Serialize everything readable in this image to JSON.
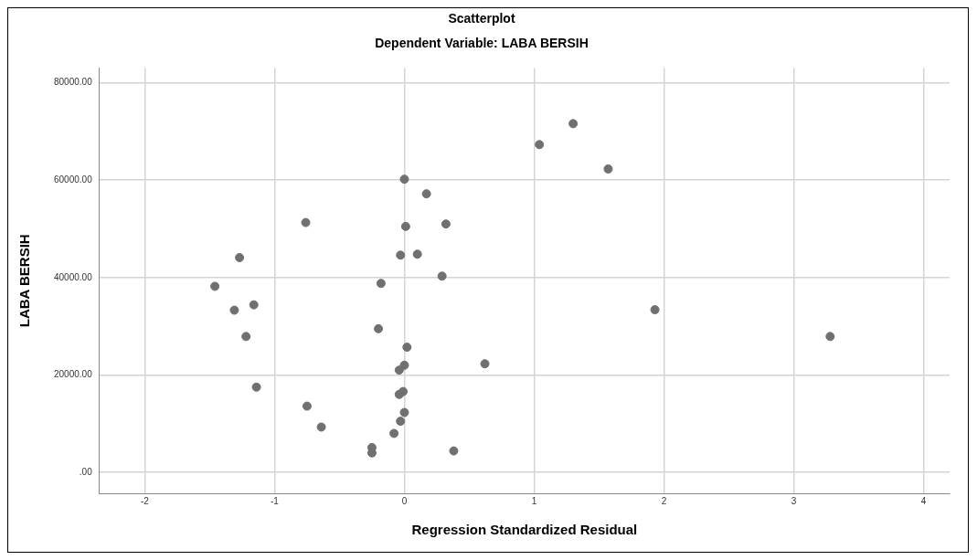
{
  "chart_data": {
    "type": "scatter",
    "title": "Scatterplot",
    "subtitle": "Dependent Variable: LABA BERSIH",
    "xlabel": "Regression Standardized Residual",
    "ylabel": "LABA BERSIH",
    "xlim": [
      -2.35,
      4.2
    ],
    "xticks": [
      -2,
      -1,
      0,
      1,
      2,
      3,
      4
    ],
    "ylim": [
      -4300,
      83000
    ],
    "yticks": [
      {
        "value": 0,
        "label": ".00"
      },
      {
        "value": 20000,
        "label": "20000.00"
      },
      {
        "value": 40000,
        "label": "40000.00"
      },
      {
        "value": 60000,
        "label": "60000.00"
      },
      {
        "value": 80000,
        "label": "80000.00"
      }
    ],
    "grid": true,
    "legend": false,
    "marker": "circle",
    "series": [
      {
        "color": "#707070",
        "x": [
          0.0,
          0.17,
          -0.76,
          0.01,
          0.32,
          -1.27,
          -0.03,
          0.1,
          -1.46,
          -0.18,
          0.29,
          -1.31,
          -1.16,
          -1.22,
          -0.2,
          0.02,
          0.0,
          -0.04,
          0.62,
          -1.14,
          -0.01,
          -0.04,
          -0.75,
          0.0,
          -0.03,
          -0.64,
          -0.08,
          -0.25,
          -0.25,
          0.38,
          1.3,
          1.04,
          1.57,
          1.93,
          3.28
        ],
        "values": [
          60200,
          57200,
          51300,
          50500,
          51000,
          44100,
          44600,
          44800,
          38200,
          38800,
          40300,
          33300,
          34400,
          27900,
          29500,
          25700,
          22000,
          21000,
          22300,
          17500,
          16600,
          16000,
          13600,
          12300,
          10500,
          9300,
          8000,
          5100,
          4000,
          4400,
          71600,
          67300,
          62300,
          33400,
          27900
        ]
      }
    ]
  }
}
